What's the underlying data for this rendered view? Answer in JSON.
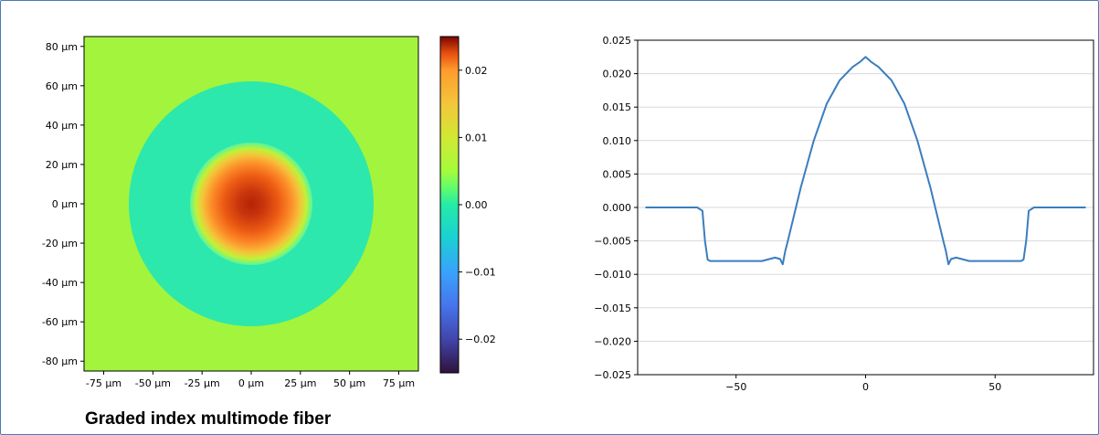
{
  "caption": "Graded index multimode fiber",
  "chart_data": [
    {
      "type": "heatmap",
      "title": "",
      "xlabel": "",
      "ylabel": "",
      "x_ticks": [
        "-75 µm",
        "-50 µm",
        "-25 µm",
        "0 µm",
        "25 µm",
        "50 µm",
        "75 µm"
      ],
      "y_ticks": [
        "80 µm",
        "60 µm",
        "40 µm",
        "20 µm",
        "0 µm",
        "-20 µm",
        "-40 µm",
        "-60 µm",
        "-80 µm"
      ],
      "xlim": [
        -85,
        85
      ],
      "ylim": [
        -85,
        85
      ],
      "colorbar": {
        "colormap": "turbo",
        "range": [
          -0.025,
          0.025
        ],
        "ticks": [
          "0.02",
          "0.01",
          "0.00",
          "−0.01",
          "−0.02"
        ]
      },
      "regions": [
        {
          "region": "cladding",
          "radius_um": [
            62,
            85
          ],
          "value": 0.0
        },
        {
          "region": "trench",
          "radius_um": [
            31,
            62
          ],
          "value": -0.008
        },
        {
          "region": "core",
          "radius_um": [
            0,
            31
          ],
          "profile": "graded",
          "center_value": 0.0225,
          "edge_value": -0.006
        }
      ]
    },
    {
      "type": "line",
      "title": "",
      "xlabel": "",
      "ylabel": "",
      "xlim": [
        -88,
        88
      ],
      "ylim": [
        -0.025,
        0.025
      ],
      "grid": true,
      "x_ticks": [
        "−50",
        "0",
        "50"
      ],
      "y_ticks": [
        "0.025",
        "0.020",
        "0.015",
        "0.010",
        "0.005",
        "0.000",
        "−0.005",
        "−0.010",
        "−0.015",
        "−0.020",
        "−0.025"
      ],
      "color": "#3a7dbf",
      "series": [
        {
          "x": [
            -85,
            -65,
            -63,
            -62,
            -61,
            -60,
            -50,
            -40,
            -35,
            -33,
            -32,
            -31,
            -30,
            -25,
            -20,
            -15,
            -10,
            -5,
            -2,
            0,
            2,
            5,
            10,
            15,
            20,
            25,
            30,
            31,
            32,
            33,
            35,
            40,
            50,
            60,
            61,
            62,
            63,
            65,
            85
          ],
          "y": [
            0.0,
            0.0,
            -0.0005,
            -0.005,
            -0.0078,
            -0.008,
            -0.008,
            -0.008,
            -0.0075,
            -0.0077,
            -0.0085,
            -0.0065,
            -0.005,
            0.003,
            0.01,
            0.0155,
            0.019,
            0.021,
            0.0218,
            0.0225,
            0.0218,
            0.021,
            0.019,
            0.0155,
            0.01,
            0.003,
            -0.005,
            -0.0065,
            -0.0085,
            -0.0077,
            -0.0075,
            -0.008,
            -0.008,
            -0.008,
            -0.0078,
            -0.005,
            -0.0005,
            0.0,
            0.0
          ]
        }
      ]
    }
  ]
}
